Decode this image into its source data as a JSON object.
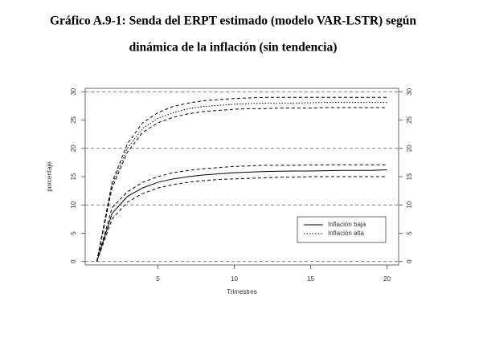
{
  "chart_data": {
    "type": "line",
    "title_lines": [
      "Gráfico A.9-1: Senda del ERPT estimado (modelo VAR-LSTR) según",
      "dinámica de la inflación (sin tendencia)"
    ],
    "x_label": "Trimestres",
    "y_label": "porcentaje",
    "x": [
      1,
      2,
      3,
      4,
      5,
      6,
      7,
      8,
      9,
      10,
      11,
      12,
      13,
      14,
      15,
      16,
      17,
      18,
      19,
      20
    ],
    "xlim": [
      0.24,
      20.76
    ],
    "xticks": [
      5,
      10,
      15,
      20
    ],
    "ylim": [
      -0.6,
      30.6
    ],
    "yticks": [
      0,
      5,
      10,
      15,
      20,
      25,
      30
    ],
    "grid_lines": [
      0,
      10,
      20,
      30
    ],
    "legend_position": "lower-right",
    "series": [
      {
        "name": "Inflación baja",
        "color": "#000000",
        "dash": "solid",
        "values": [
          0,
          8.5,
          11.5,
          13,
          14,
          14.6,
          15,
          15.3,
          15.5,
          15.7,
          15.8,
          15.9,
          15.95,
          16,
          16,
          16.05,
          16.1,
          16.1,
          16.1,
          16.2
        ]
      },
      {
        "color": "#000000",
        "dash": "dashed",
        "values": [
          0,
          9.5,
          12.3,
          14,
          15,
          15.7,
          16.1,
          16.4,
          16.6,
          16.8,
          16.9,
          17,
          17,
          17,
          17.05,
          17.1,
          17.1,
          17.1,
          17.1,
          17.1
        ]
      },
      {
        "color": "#000000",
        "dash": "dashed",
        "values": [
          0,
          7.5,
          10.5,
          12,
          13,
          13.6,
          14,
          14.3,
          14.5,
          14.6,
          14.7,
          14.8,
          14.9,
          14.9,
          15,
          15,
          15,
          15,
          15,
          15
        ]
      },
      {
        "name": "Inflación alta",
        "color": "#000000",
        "dash": "dotted",
        "values": [
          0,
          13.5,
          20,
          23.5,
          25.3,
          26.3,
          27,
          27.4,
          27.6,
          27.8,
          27.9,
          28,
          28,
          28,
          28.05,
          28.1,
          28.1,
          28.1,
          28.1,
          28.1
        ]
      },
      {
        "color": "#000000",
        "dash": "dashed",
        "values": [
          0,
          14,
          20.8,
          24.5,
          26.3,
          27.4,
          28,
          28.4,
          28.6,
          28.8,
          28.9,
          29,
          29,
          29,
          29,
          29,
          29,
          29,
          29,
          29
        ]
      },
      {
        "color": "#000000",
        "dash": "dashed",
        "values": [
          0,
          13,
          19.3,
          22.8,
          24.5,
          25.5,
          26.1,
          26.5,
          26.7,
          26.9,
          27,
          27,
          27.1,
          27.1,
          27.1,
          27.2,
          27.2,
          27.2,
          27.2,
          27.2
        ]
      }
    ]
  }
}
